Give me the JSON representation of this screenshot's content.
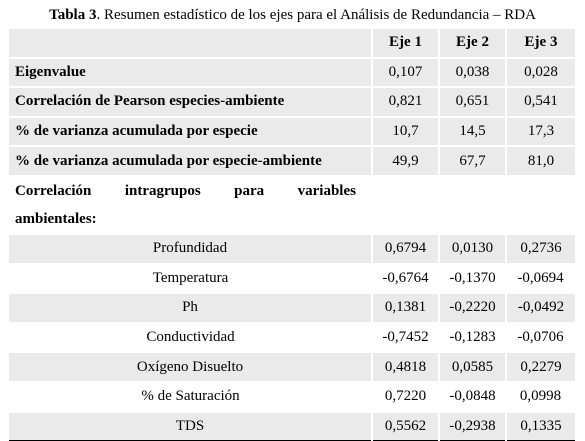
{
  "caption": {
    "label": "Tabla 3",
    "text": ". Resumen estadístico de los ejes para el Análisis de Redundancia – RDA"
  },
  "table": {
    "headers": [
      "",
      "Eje 1",
      "Eje 2",
      "Eje 3"
    ],
    "summary_rows": [
      {
        "label": "Eigenvalue",
        "values": [
          "0,107",
          "0,038",
          "0,028"
        ]
      },
      {
        "label": "Correlación de Pearson especies-ambiente",
        "values": [
          "0,821",
          "0,651",
          "0,541"
        ]
      },
      {
        "label": "% de varianza acumulada por especie",
        "values": [
          "10,7",
          "14,5",
          "17,3"
        ]
      },
      {
        "label": "% de varianza acumulada por especie-ambiente",
        "values": [
          "49,9",
          "67,7",
          "81,0"
        ]
      }
    ],
    "intra_heading": {
      "words": [
        "Correlación",
        "intragrupos",
        "para",
        "variables"
      ],
      "line2": "ambientales:"
    },
    "variable_rows": [
      {
        "label": "Profundidad",
        "values": [
          "0,6794",
          "0,0130",
          "0,2736"
        ]
      },
      {
        "label": "Temperatura",
        "values": [
          "-0,6764",
          "-0,1370",
          "-0,0694"
        ]
      },
      {
        "label": "Ph",
        "values": [
          "0,1381",
          "-0,2220",
          "-0,0492"
        ]
      },
      {
        "label": "Conductividad",
        "values": [
          "-0,7452",
          "-0,1283",
          "-0,0706"
        ]
      },
      {
        "label": "Oxígeno Disuelto",
        "values": [
          "0,4818",
          "0,0585",
          "0,2279"
        ]
      },
      {
        "label": "% de Saturación",
        "values": [
          "0,7220",
          "-0,0848",
          "0,0998"
        ]
      },
      {
        "label": "TDS",
        "values": [
          "0,5562",
          "-0,2938",
          "0,1335"
        ]
      }
    ]
  }
}
